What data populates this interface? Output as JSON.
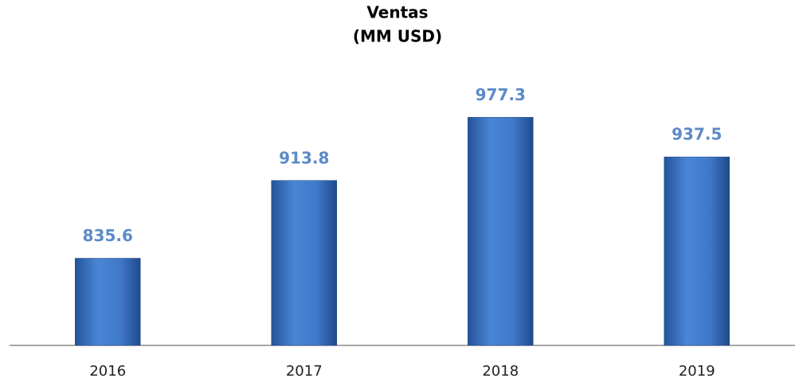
{
  "chart_data": {
    "type": "bar",
    "title": "Ventas",
    "subtitle": "(MM USD)",
    "categories": [
      "2016",
      "2017",
      "2018",
      "2019"
    ],
    "values": [
      835.6,
      913.8,
      977.3,
      937.5
    ],
    "color": "#3f78c9",
    "ylim": [
      748,
      1000
    ]
  }
}
